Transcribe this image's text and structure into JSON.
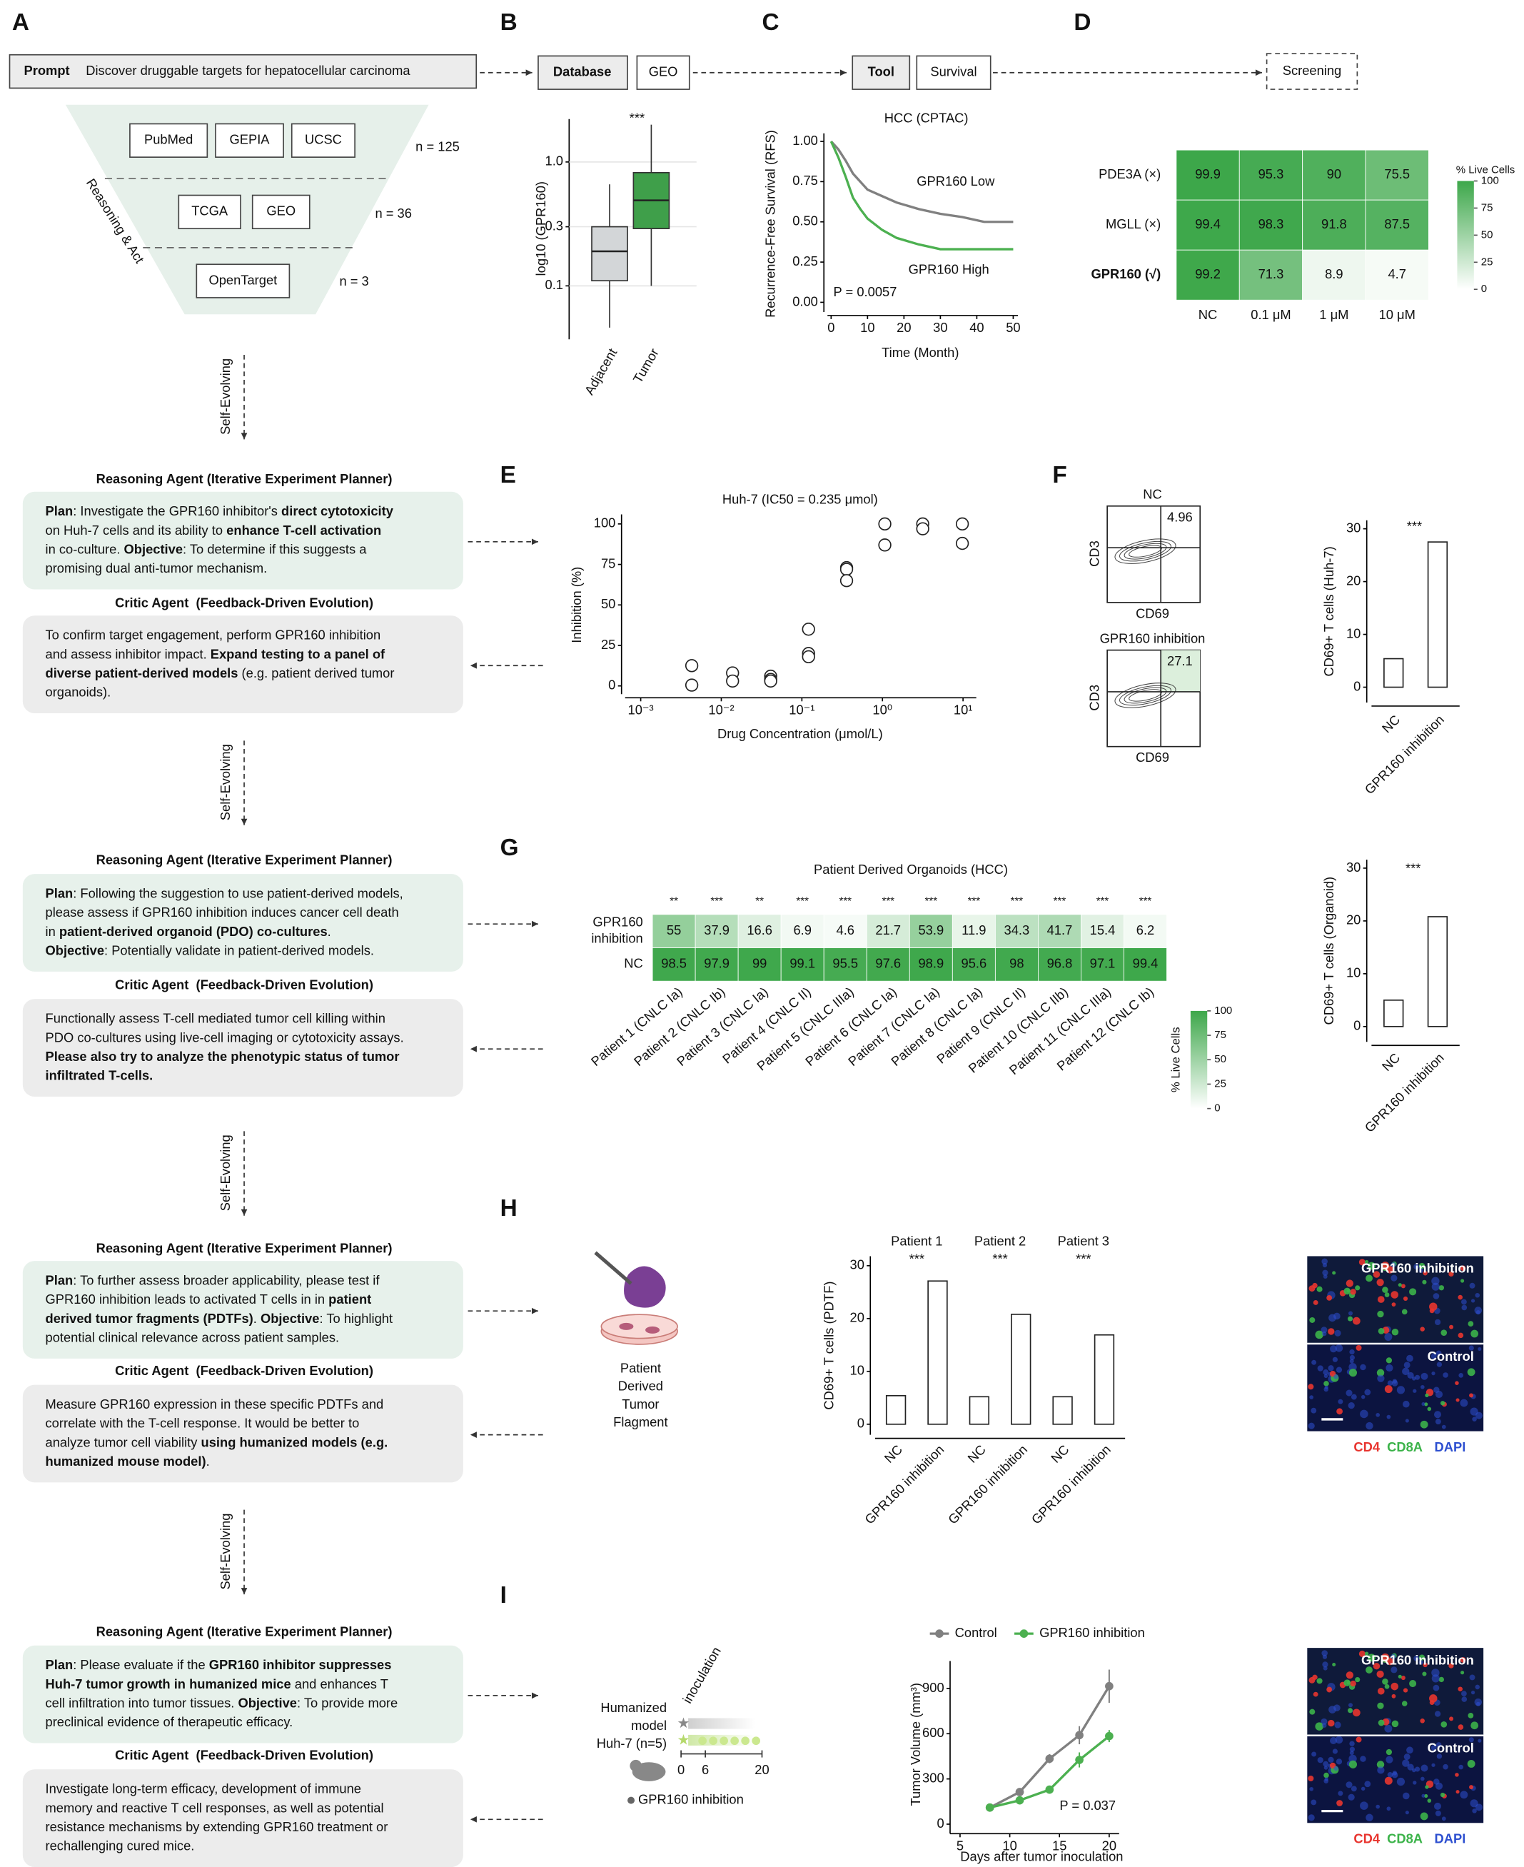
{
  "panel_labels": [
    "A",
    "B",
    "C",
    "D",
    "E",
    "F",
    "G",
    "H",
    "I"
  ],
  "top_flow": {
    "prompt_label": "Prompt",
    "prompt": "Discover druggable targets for hepatocellular carcinoma",
    "database_label": "Database",
    "database": "GEO",
    "tool_label": "Tool",
    "tool": "Survival",
    "screening": "Screening"
  },
  "funnel": {
    "side_label": "Reasoning & Act",
    "tiers": [
      {
        "sources": [
          "PubMed",
          "GEPIA",
          "UCSC"
        ],
        "n": "n = 125"
      },
      {
        "sources": [
          "TCGA",
          "GEO"
        ],
        "n": "n = 36"
      },
      {
        "sources": [
          "OpenTarget"
        ],
        "n": "n = 3"
      }
    ]
  },
  "self_evolving": [
    "Self-Evolving",
    "Self-Evolving",
    "Self-Evolving",
    "Self-Evolving"
  ],
  "agents": [
    {
      "reasoning_title": "Reasoning Agent (Iterative Experiment Planner)",
      "plan": [
        [
          {
            "bold": "Plan"
          },
          ": Investigate the GPR160 inhibitor's ",
          {
            "bold": "direct cytotoxicity"
          }
        ],
        [
          "on Huh-7 cells and its ability to ",
          {
            "bold": "enhance T-cell activation"
          }
        ],
        [
          "in co-culture. ",
          {
            "bold": "Objective"
          },
          ": To determine if this suggests a"
        ],
        [
          "promising dual anti-tumor mechanism."
        ]
      ],
      "critic_title": "Critic Agent  (Feedback-Driven Evolution)",
      "critic": [
        [
          "To confirm target engagement, perform GPR160 inhibition"
        ],
        [
          "and assess inhibitor impact. ",
          {
            "bold": "Expand testing to a panel of"
          }
        ],
        [
          {
            "bold": "diverse patient-derived models"
          },
          " (e.g. patient derived tumor"
        ],
        [
          "organoids)."
        ]
      ]
    },
    {
      "reasoning_title": "Reasoning Agent (Iterative Experiment Planner)",
      "plan": [
        [
          {
            "bold": "Plan"
          },
          ": Following the suggestion to use patient-derived models,"
        ],
        [
          "please assess if GPR160 inhibition induces cancer cell death"
        ],
        [
          "in ",
          {
            "bold": "patient-derived organoid (PDO) co-cultures"
          },
          "."
        ],
        [
          {
            "bold": "Objective"
          },
          ": Potentially validate in patient-derived models."
        ]
      ],
      "critic_title": "Critic Agent  (Feedback-Driven Evolution)",
      "critic": [
        [
          "Functionally assess T-cell mediated tumor cell killing within"
        ],
        [
          "PDO co-cultures using live-cell imaging or cytotoxicity assays."
        ],
        [
          {
            "bold": "Please also try to analyze the phenotypic status of tumor"
          }
        ],
        [
          {
            "bold": "infiltrated T-cells."
          }
        ]
      ]
    },
    {
      "reasoning_title": "Reasoning Agent (Iterative Experiment Planner)",
      "plan": [
        [
          {
            "bold": "Plan"
          },
          ": To further assess broader applicability, please test if"
        ],
        [
          "GPR160 inhibition leads to activated T cells in in ",
          {
            "bold": "patient"
          }
        ],
        [
          {
            "bold": "derived tumor fragments (PDTFs)"
          },
          ". ",
          {
            "bold": "Objective"
          },
          ": To highlight"
        ],
        [
          "potential clinical relevance across patient samples."
        ]
      ],
      "critic_title": "Critic Agent  (Feedback-Driven Evolution)",
      "critic": [
        [
          "Measure GPR160 expression in these specific PDTFs and"
        ],
        [
          "correlate with the T-cell response. It would be better to"
        ],
        [
          "analyze tumor cell viability ",
          {
            "bold": "using humanized models (e.g."
          }
        ],
        [
          {
            "bold": "humanized mouse model)"
          },
          "."
        ]
      ]
    },
    {
      "reasoning_title": "Reasoning Agent (Iterative Experiment Planner)",
      "plan": [
        [
          {
            "bold": "Plan"
          },
          ": Please evaluate if the ",
          {
            "bold": "GPR160 inhibitor suppresses"
          }
        ],
        [
          {
            "bold": "Huh-7 tumor growth in humanized mice"
          },
          " and enhances T"
        ],
        [
          "cell infiltration into tumor tissues. ",
          {
            "bold": "Objective"
          },
          ": To provide more"
        ],
        [
          "preclinical evidence of therapeutic efficacy."
        ]
      ],
      "critic_title": "Critic Agent  (Feedback-Driven Evolution)",
      "critic": [
        [
          "Investigate long-term efficacy, development of immune"
        ],
        [
          "memory and reactive T cell responses, as well as potential"
        ],
        [
          "resistance mechanisms by extending GPR160 treatment or"
        ],
        [
          "rechallenging cured mice."
        ]
      ]
    }
  ],
  "panel_b": {
    "type": "box",
    "ylabel": "log10 (GPR160)",
    "categories": [
      "Adjacent",
      "Tumor"
    ],
    "colors": [
      "#d3d6d8",
      "#3f9f4a"
    ],
    "significance": "***",
    "log_y": true,
    "ylim": [
      0.037,
      2.22
    ],
    "yticks": [
      0.1,
      0.3,
      {
        "value": 1,
        "label": "1.0"
      }
    ],
    "grid": true,
    "boxes": [
      {
        "min": 0.046,
        "q1": 0.11,
        "median": 0.19,
        "q3": 0.3,
        "max": 0.66
      },
      {
        "min": 0.1,
        "q1": 0.29,
        "median": 0.49,
        "q3": 0.82,
        "max": 2.0
      }
    ]
  },
  "panel_c": {
    "type": "line",
    "title": "HCC (CPTAC)",
    "xlabel": "Time (Month)",
    "ylabel": "Recurrence-Free Survival (RFS)",
    "annotation": "P = 0.0057",
    "xlim": [
      -1,
      51.3
    ],
    "ylim": [
      -0.06,
      1.05
    ],
    "xticks": [
      0,
      10,
      20,
      30,
      40,
      50
    ],
    "yticks": [
      {
        "value": 0,
        "label": "0.00"
      },
      {
        "value": 0.25,
        "label": "0.25"
      },
      {
        "value": 0.5,
        "label": "0.50"
      },
      {
        "value": 0.75,
        "label": "0.75"
      },
      {
        "value": 1,
        "label": "1.00"
      }
    ],
    "series": [
      {
        "name": "GPR160 Low",
        "color": "#808080",
        "x": [
          0,
          2,
          4,
          6,
          8,
          10,
          14,
          18,
          24,
          30,
          36,
          42,
          50
        ],
        "values": [
          1,
          0.95,
          0.88,
          0.8,
          0.75,
          0.7,
          0.66,
          0.62,
          0.58,
          0.55,
          0.53,
          0.5,
          0.5
        ]
      },
      {
        "name": "GPR160 High",
        "color": "#4cb050",
        "x": [
          0,
          2,
          4,
          6,
          8,
          10,
          14,
          18,
          24,
          30,
          36,
          42,
          50
        ],
        "values": [
          1,
          0.9,
          0.78,
          0.65,
          0.58,
          0.52,
          0.45,
          0.4,
          0.36,
          0.33,
          0.33,
          0.33,
          0.33
        ]
      }
    ]
  },
  "panel_d": {
    "type": "heatmap",
    "rows": [
      "PDE3A (×)",
      "MGLL (×)",
      "GPR160 (√)"
    ],
    "columns": [
      "NC",
      "0.1 μM",
      "1 μM",
      "10 μM"
    ],
    "values": [
      [
        99.9,
        95.3,
        90,
        75.5
      ],
      [
        99.4,
        98.3,
        91.8,
        87.5
      ],
      [
        99.2,
        71.3,
        8.9,
        4.7
      ]
    ],
    "colorbar_title": "% Live Cells",
    "colorbar_ticks": [
      0,
      25,
      50,
      75,
      100
    ],
    "clim": [
      0,
      100
    ],
    "color_range": [
      "#ffffff",
      "#3da74a"
    ]
  },
  "panel_e": {
    "type": "scatter",
    "title": "Huh-7 (IC50 = 0.235 μmol)",
    "xlabel": "Drug Concentration (μmol/L)",
    "ylabel": "Inhibition (%)",
    "log_x": true,
    "xlim": [
      0.00064,
      14.6
    ],
    "ylim": [
      -5.1,
      105.9
    ],
    "xticks": [
      {
        "value": 0.001,
        "label": "10⁻³"
      },
      {
        "value": 0.01,
        "label": "10⁻²"
      },
      {
        "value": 0.1,
        "label": "10⁻¹"
      },
      {
        "value": 1,
        "label": "10⁰"
      },
      {
        "value": 10,
        "label": "10¹"
      }
    ],
    "yticks": [
      0,
      25,
      50,
      75,
      100
    ],
    "x": [
      0.0043,
      0.0043,
      0.0138,
      0.0138,
      0.041,
      0.041,
      0.041,
      0.121,
      0.121,
      0.121,
      0.359,
      0.359,
      0.359,
      1.07,
      1.07,
      3.16,
      3.16,
      9.8,
      9.8
    ],
    "values": [
      12.5,
      0.5,
      8,
      3,
      6,
      4,
      3,
      35,
      20,
      18,
      73,
      72,
      65,
      100,
      87,
      100,
      97,
      100,
      88
    ]
  },
  "panel_f": {
    "flow": [
      {
        "title": "NC",
        "quadrant_value": "4.96"
      },
      {
        "title": "GPR160 inhibition",
        "quadrant_value": "27.1"
      }
    ],
    "flow_ylabel": "CD3",
    "flow_xlabel": "CD69",
    "bar": {
      "type": "bar",
      "ylabel": "CD69+ T cells (Huh-7)",
      "categories": [
        "NC",
        "GPR160 inhibition"
      ],
      "values": [
        5.4,
        27.5
      ],
      "ylim": [
        -2.9,
        31.6
      ],
      "yticks": [
        0,
        10,
        20,
        30
      ],
      "significance": "***"
    }
  },
  "panel_g": {
    "type": "heatmap",
    "title": "Patient Derived Organoids (HCC)",
    "rows": [
      [
        "GPR160",
        "inhibition"
      ],
      [
        "NC"
      ]
    ],
    "columns": [
      "Patient 1 (CNLC Ia)",
      "Patient 2 (CNLC Ib)",
      "Patient 3 (CNLC Ia)",
      "Patient 4 (CNLC II)",
      "Patient 5 (CNLC IIIa)",
      "Patient 6 (CNLC Ia)",
      "Patient 7 (CNLC Ia)",
      "Patient 8 (CNLC Ia)",
      "Patient 9 (CNLC II)",
      "Patient 10 (CNLC IIb)",
      "Patient 11 (CNLC IIIa)",
      "Patient 12 (CNLC Ib)"
    ],
    "significance": [
      "**",
      "***",
      "**",
      "***",
      "***",
      "***",
      "***",
      "***",
      "***",
      "***",
      "***",
      "***"
    ],
    "values": [
      [
        55,
        37.9,
        16.6,
        6.9,
        4.6,
        21.7,
        53.9,
        11.9,
        34.3,
        41.7,
        15.4,
        6.2
      ],
      [
        98.5,
        97.9,
        99,
        99.1,
        95.5,
        97.6,
        98.9,
        95.6,
        98,
        96.8,
        97.1,
        99.4
      ]
    ],
    "colorbar_title": "% Live Cells",
    "colorbar_ticks": [
      0,
      25,
      50,
      75,
      100
    ],
    "clim": [
      0,
      100
    ],
    "color_range": [
      "#ffffff",
      "#3da74a"
    ],
    "bar": {
      "type": "bar",
      "ylabel": "CD69+ T cells (Organoid)",
      "categories": [
        "NC",
        "GPR160 inhibition"
      ],
      "values": [
        5,
        20.8
      ],
      "ylim": [
        -2.9,
        31.6
      ],
      "yticks": [
        0,
        10,
        20,
        30
      ],
      "significance": "***"
    }
  },
  "panel_h": {
    "illustration_label": [
      "Patient",
      "Derived",
      "Tumor",
      "Flagment"
    ],
    "bar": {
      "type": "bar",
      "ylabel": "CD69+ T cells (PDTF)",
      "groups": [
        "Patient 1",
        "Patient 2",
        "Patient 3"
      ],
      "significance": [
        "***",
        "***",
        "***"
      ],
      "categories": [
        "NC",
        "GPR160 inhibition",
        "NC",
        "GPR160 inhibition",
        "NC",
        "GPR160 inhibition"
      ],
      "values": [
        5.4,
        27.1,
        5.2,
        20.8,
        5.2,
        16.9
      ],
      "ylim": [
        -2,
        31.8
      ],
      "yticks": [
        0,
        10,
        20,
        30
      ]
    },
    "images": {
      "panels": [
        "GPR160 inhibition",
        "Control"
      ],
      "stains": [
        "CD4",
        "CD8A",
        "DAPI"
      ],
      "stain_colors": [
        "#e8352f",
        "#3cb34a",
        "#2d4fd0"
      ]
    }
  },
  "panel_i": {
    "schema": {
      "model_lines": [
        "Humanized",
        "model"
      ],
      "group": "Huh-7 (n=5)",
      "event": "inoculation",
      "schedule_ticks": [
        0,
        6,
        20
      ],
      "treatment": "GPR160 inhibition"
    },
    "line": {
      "type": "line",
      "xlabel": "Days after tumor inoculation",
      "ylabel": "Tumor Volume (mm³)",
      "annotation": "P = 0.037",
      "xlim": [
        4,
        21
      ],
      "ylim": [
        -63,
        1082
      ],
      "xticks": [
        5,
        10,
        15,
        20
      ],
      "yticks": [
        0,
        300,
        600,
        900
      ],
      "x": [
        8,
        11,
        14,
        17,
        20
      ],
      "series": [
        {
          "name": "Control",
          "color": "#808080",
          "values": [
            110,
            213,
            434,
            590,
            915
          ],
          "errors": [
            0,
            12,
            30,
            60,
            110
          ]
        },
        {
          "name": "GPR160 inhibition",
          "color": "#4cb050",
          "values": [
            110,
            158,
            229,
            426,
            584
          ],
          "errors": [
            0,
            10,
            15,
            50,
            40
          ]
        }
      ]
    },
    "images": {
      "panels": [
        "GPR160 inhibition",
        "Control"
      ],
      "stains": [
        "CD4",
        "CD8A",
        "DAPI"
      ],
      "stain_colors": [
        "#e8352f",
        "#3cb34a",
        "#2d4fd0"
      ]
    }
  }
}
